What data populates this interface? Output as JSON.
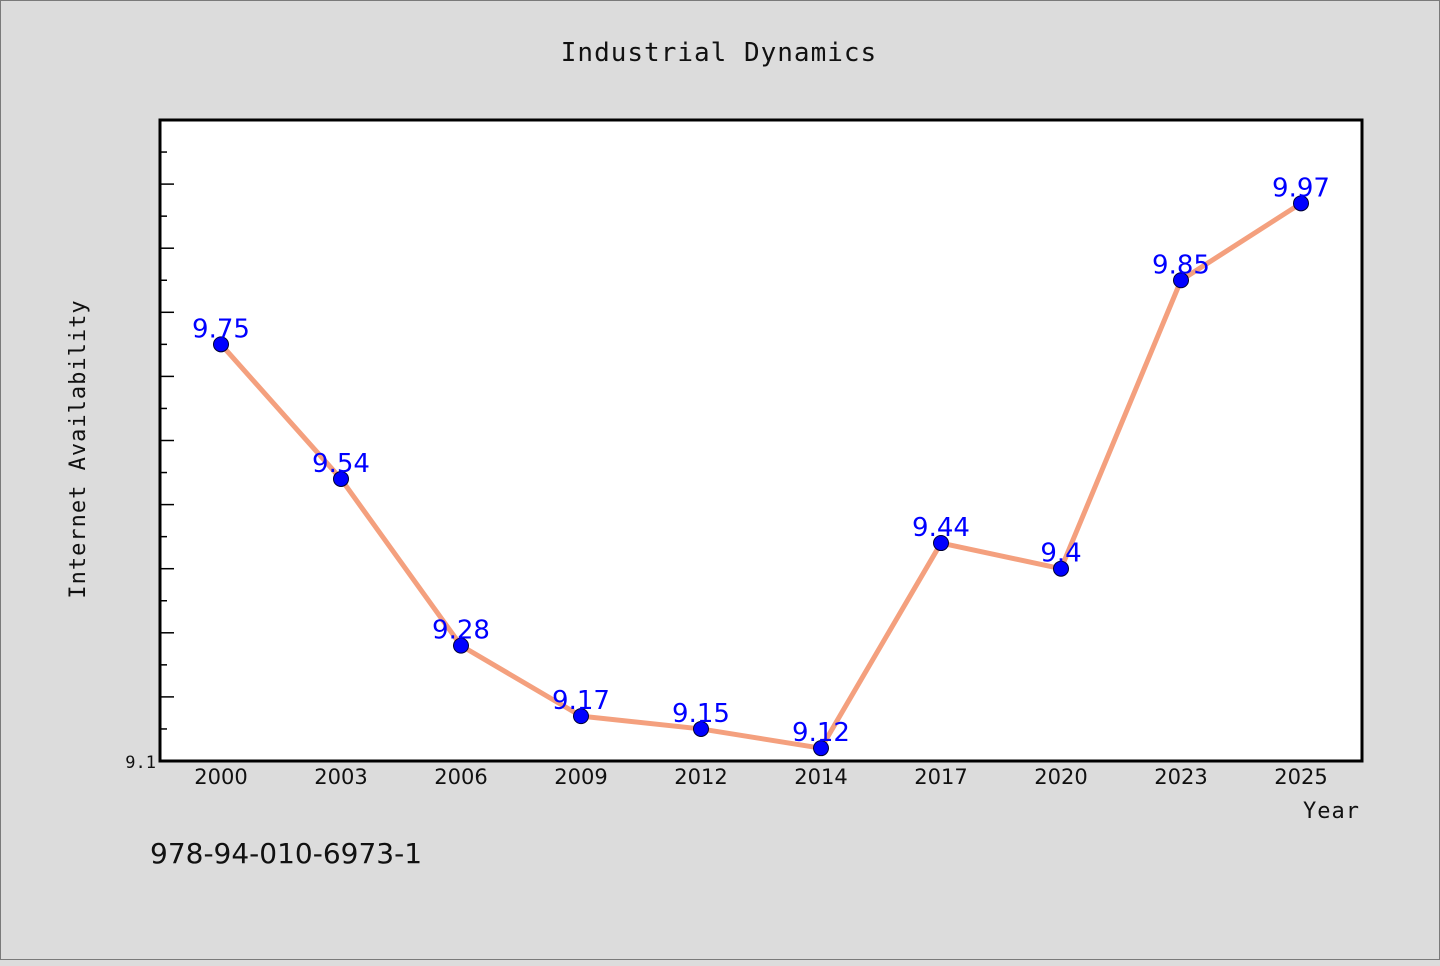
{
  "chart_data": {
    "type": "line",
    "title": "Industrial Dynamics",
    "xlabel": "Year",
    "ylabel": "Internet Availability",
    "categories": [
      "2000",
      "2003",
      "2006",
      "2009",
      "2012",
      "2014",
      "2017",
      "2020",
      "2023",
      "2025"
    ],
    "series": [
      {
        "values": [
          9.75,
          9.54,
          9.28,
          9.17,
          9.15,
          9.12,
          9.44,
          9.4,
          9.85,
          9.97
        ]
      }
    ],
    "data_labels": [
      "9.75",
      "9.54",
      "9.28",
      "9.17",
      "9.15",
      "9.12",
      "9.44",
      "9.4",
      "9.85",
      "9.97"
    ],
    "ylim": [
      9.1,
      10.1
    ],
    "ytick_labels": [
      "9.1"
    ],
    "grid": false,
    "colors": {
      "line": "#f4a07e",
      "marker": "#0000ff",
      "data_label": "#0000ff",
      "background": "#dcdcdc",
      "plot_background": "#ffffff"
    }
  },
  "footer": {
    "isbn": "978-94-010-6973-1"
  }
}
